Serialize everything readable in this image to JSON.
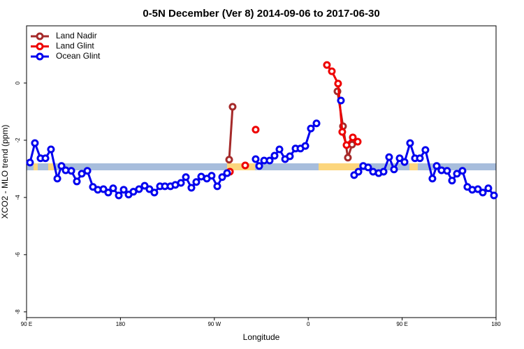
{
  "chart_data": {
    "type": "line",
    "title": "0-5N December (Ver 8)   2014-09-06 to 2017-06-30",
    "x_label": "Longitude",
    "y_label": "XCO2 - MLO trend (ppm)",
    "xlim": [
      90,
      540
    ],
    "xticks": [
      {
        "value": 90,
        "label": "90 E"
      },
      180,
      {
        "value": 270,
        "label": "90 W"
      },
      {
        "value": 360,
        "label": "0"
      },
      {
        "value": 450,
        "label": "90 E"
      },
      {
        "value": 540,
        "label": "180"
      }
    ],
    "ylim": [
      -8.2,
      2
    ],
    "yticks": [
      0,
      -2,
      -4,
      -6,
      -8
    ],
    "legend": "top-left",
    "series": [
      {
        "name": "Land Nadir",
        "color": "#a52a2a",
        "x": [
          284.2,
          287.5,
          null,
          388.0,
          393.3,
          398.0,
          402.0
        ],
        "values": [
          -2.68,
          -0.83,
          null,
          -0.29,
          -1.51,
          -2.61,
          -2.15
        ]
      },
      {
        "name": "Land Glint",
        "color": "#ee0000",
        "x": [
          284.9,
          null,
          299.6,
          null,
          309.6,
          null,
          377.9,
          382.6,
          388.6,
          392.6,
          396.7,
          402.7,
          407.4
        ],
        "values": [
          -3.1,
          null,
          -2.88,
          null,
          -1.63,
          null,
          0.63,
          0.41,
          -0.02,
          -1.71,
          -2.17,
          -1.9,
          -2.05
        ]
      },
      {
        "name": "Ocean Glint",
        "color": "#0000ee",
        "x": [
          93.3,
          98.0,
          103.4,
          108.1,
          113.4,
          119.5,
          123.5,
          127.5,
          132.9,
          138.2,
          142.9,
          148.3,
          153.6,
          158.3,
          163.7,
          168.3,
          173.0,
          178.4,
          183.1,
          187.8,
          192.4,
          197.8,
          203.2,
          207.8,
          212.5,
          217.9,
          222.6,
          227.9,
          232.6,
          238.0,
          242.7,
          248.0,
          252.7,
          257.4,
          262.8,
          267.4,
          272.8,
          277.5,
          282.2,
          null,
          309.6,
          313.0,
          317.7,
          323.0,
          327.7,
          332.4,
          337.8,
          342.4,
          347.8,
          352.5,
          357.2,
          362.5,
          367.9,
          null,
          391.3,
          null,
          404.0,
          408.1,
          412.7,
          417.4,
          422.1,
          427.5,
          432.2,
          437.5,
          442.2,
          447.6,
          452.3,
          457.6,
          462.3,
          467.0,
          472.3,
          479.0,
          483.1,
          487.7,
          493.1,
          497.8,
          502.5,
          507.8,
          512.5,
          517.2,
          522.6,
          527.3,
          532.6,
          538.0
        ],
        "values": [
          -2.78,
          -2.1,
          -2.63,
          -2.63,
          -2.32,
          -3.34,
          -2.9,
          -3.05,
          -3.07,
          -3.44,
          -3.17,
          -3.07,
          -3.63,
          -3.73,
          -3.71,
          -3.83,
          -3.68,
          -3.93,
          -3.73,
          -3.9,
          -3.8,
          -3.71,
          -3.59,
          -3.71,
          -3.83,
          -3.61,
          -3.61,
          -3.61,
          -3.56,
          -3.49,
          -3.29,
          -3.66,
          -3.46,
          -3.27,
          -3.34,
          -3.24,
          -3.61,
          -3.29,
          -3.15,
          null,
          -2.66,
          -2.9,
          -2.71,
          -2.71,
          -2.54,
          -2.32,
          -2.66,
          -2.56,
          -2.29,
          -2.29,
          -2.2,
          -1.59,
          -1.41,
          null,
          -0.61,
          null,
          -3.22,
          -3.1,
          -2.9,
          -2.95,
          -3.1,
          -3.15,
          -3.1,
          -2.59,
          -3.02,
          -2.63,
          -2.76,
          -2.1,
          -2.63,
          -2.63,
          -2.34,
          -3.34,
          -2.9,
          -3.05,
          -3.07,
          -3.41,
          -3.17,
          -3.07,
          -3.63,
          -3.73,
          -3.71,
          -3.83,
          -3.68,
          -3.93
        ]
      }
    ]
  }
}
